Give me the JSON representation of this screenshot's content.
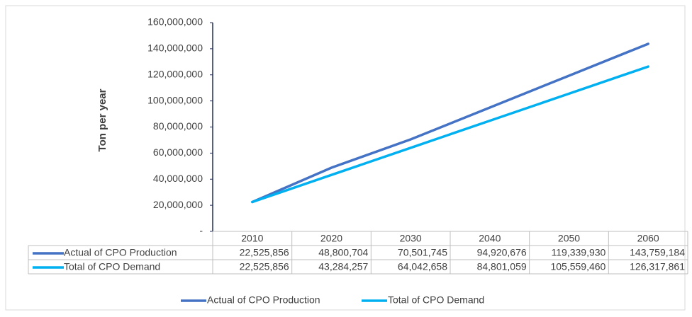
{
  "chart_data": {
    "type": "line",
    "y_label": "Ton per year",
    "categories": [
      "2010",
      "2020",
      "2030",
      "2040",
      "2050",
      "2060"
    ],
    "series": [
      {
        "name": "Actual of CPO Production",
        "color": "#4472c4",
        "values": [
          22525856,
          48800704,
          70501745,
          94920676,
          119339930,
          143759184
        ],
        "value_labels": [
          "22,525,856",
          "48,800,704",
          "70,501,745",
          "94,920,676",
          "119,339,930",
          "143,759,184"
        ]
      },
      {
        "name": "Total of CPO Demand",
        "color": "#00b0f0",
        "values": [
          22525856,
          43284257,
          64042658,
          84801059,
          105559460,
          126317861
        ],
        "value_labels": [
          "22,525,856",
          "43,284,257",
          "64,042,658",
          "84,801,059",
          "105,559,460",
          "126,317,861"
        ]
      }
    ],
    "ylim": [
      0,
      160000000
    ],
    "yticks": [
      {
        "value": 0,
        "label": "-"
      },
      {
        "value": 20000000,
        "label": "20,000,000"
      },
      {
        "value": 40000000,
        "label": "40,000,000"
      },
      {
        "value": 60000000,
        "label": "60,000,000"
      },
      {
        "value": 80000000,
        "label": "80,000,000"
      },
      {
        "value": 100000000,
        "label": "100,000,000"
      },
      {
        "value": 120000000,
        "label": "120,000,000"
      },
      {
        "value": 140000000,
        "label": "140,000,000"
      },
      {
        "value": 160000000,
        "label": "160,000,000"
      }
    ],
    "grid": false,
    "legend": "bottom"
  }
}
